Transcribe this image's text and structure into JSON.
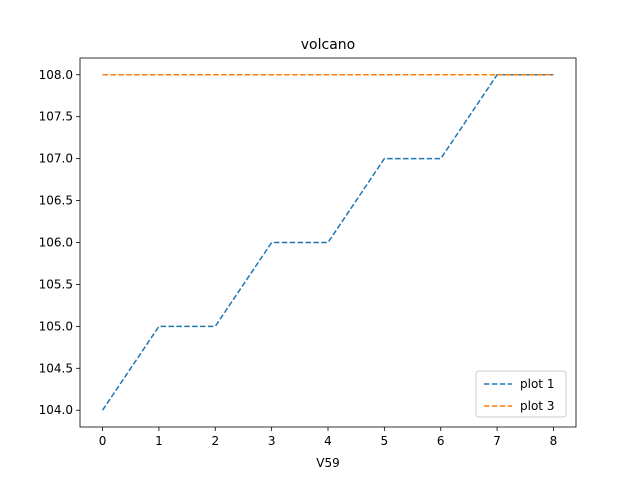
{
  "chart_data": {
    "type": "line",
    "title": "volcano",
    "xlabel": "V59",
    "ylabel": "",
    "xlim": [
      -0.4,
      8.4
    ],
    "ylim": [
      103.8,
      108.2
    ],
    "xticks": [
      0,
      1,
      2,
      3,
      4,
      5,
      6,
      7,
      8
    ],
    "xtick_labels": [
      "0",
      "1",
      "2",
      "3",
      "4",
      "5",
      "6",
      "7",
      "8"
    ],
    "yticks": [
      104.0,
      104.5,
      105.0,
      105.5,
      106.0,
      106.5,
      107.0,
      107.5,
      108.0
    ],
    "ytick_labels": [
      "104.0",
      "104.5",
      "105.0",
      "105.5",
      "106.0",
      "106.5",
      "107.0",
      "107.5",
      "108.0"
    ],
    "grid": false,
    "legend_position": "lower-right",
    "x": [
      0,
      1,
      2,
      3,
      4,
      5,
      6,
      7,
      8
    ],
    "series": [
      {
        "name": "plot 1",
        "color": "#1f77b4",
        "linestyle": "dashed",
        "values": [
          104,
          105,
          105,
          106,
          106,
          107,
          107,
          108,
          108
        ]
      },
      {
        "name": "plot 3",
        "color": "#ff7f0e",
        "linestyle": "dashed",
        "values": [
          108,
          108,
          108,
          108,
          108,
          108,
          108,
          108,
          108
        ]
      }
    ]
  }
}
